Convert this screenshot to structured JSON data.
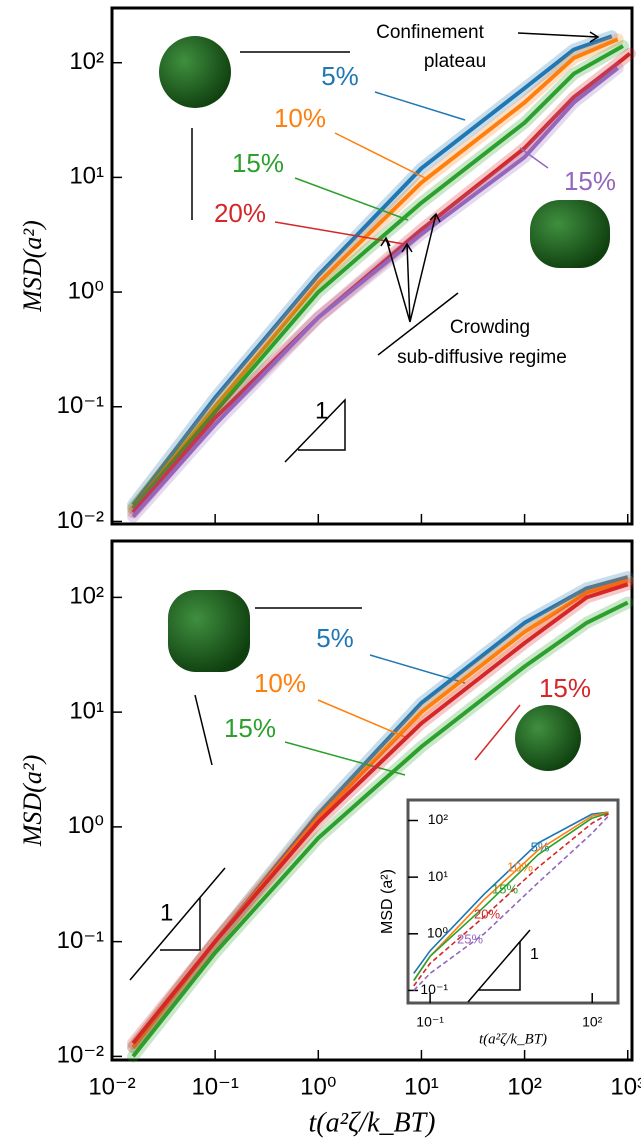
{
  "chart_data": [
    {
      "type": "line",
      "log_x": true,
      "log_y": true,
      "y_label": "MSD(a²)",
      "xlim": [
        0.01,
        1100
      ],
      "ylim": [
        0.0095,
        300
      ],
      "xticks": [
        0.01,
        0.1,
        1,
        10,
        100,
        1000
      ],
      "yticks": [
        {
          "value": 0.01,
          "label": "10⁻²"
        },
        {
          "value": 0.1,
          "label": "10⁻¹"
        },
        {
          "value": 1,
          "label": "10⁰"
        },
        {
          "value": 10,
          "label": "10¹"
        },
        {
          "value": 100,
          "label": "10²"
        }
      ],
      "annotations": [
        "Confinement",
        "plateau",
        "Crowding",
        "sub-diffusive regime",
        "1"
      ],
      "series": [
        {
          "name": "5%",
          "color": "#1f77b4",
          "x": [
            0.016,
            0.1,
            1,
            10,
            100,
            300,
            700
          ],
          "values": [
            0.014,
            0.12,
            1.4,
            12,
            60,
            130,
            170
          ]
        },
        {
          "name": "10%",
          "color": "#ff7f0e",
          "x": [
            0.016,
            0.1,
            1,
            10,
            100,
            300,
            800
          ],
          "values": [
            0.013,
            0.1,
            1.2,
            9,
            45,
            110,
            160
          ]
        },
        {
          "name": "15%",
          "color": "#2ca02c",
          "x": [
            0.016,
            0.1,
            1,
            10,
            100,
            300,
            900
          ],
          "values": [
            0.013,
            0.09,
            1.0,
            6,
            30,
            80,
            140
          ]
        },
        {
          "name": "20%",
          "color": "#d62728",
          "x": [
            0.016,
            0.1,
            1,
            10,
            100,
            300,
            700,
            1050
          ],
          "values": [
            0.012,
            0.08,
            0.6,
            3.5,
            18,
            50,
            90,
            120
          ]
        },
        {
          "name": "15%",
          "color": "#9467bd",
          "x": [
            0.016,
            0.1,
            1,
            10,
            100,
            300,
            800
          ],
          "values": [
            0.011,
            0.07,
            0.6,
            3.2,
            15,
            45,
            90
          ]
        }
      ]
    },
    {
      "type": "line",
      "log_x": true,
      "log_y": true,
      "y_label": "MSD(a²)",
      "x_label": "t(a²ζ/k_BT)",
      "xlim": [
        0.01,
        1100
      ],
      "ylim": [
        0.0093,
        310
      ],
      "xticks": [
        {
          "value": 0.01,
          "label": "10⁻²"
        },
        {
          "value": 0.1,
          "label": "10⁻¹"
        },
        {
          "value": 1,
          "label": "10⁰"
        },
        {
          "value": 10,
          "label": "10¹"
        },
        {
          "value": 100,
          "label": "10²"
        },
        {
          "value": 1000,
          "label": "10³"
        }
      ],
      "yticks": [
        {
          "value": 0.01,
          "label": "10⁻²"
        },
        {
          "value": 0.1,
          "label": "10⁻¹"
        },
        {
          "value": 1,
          "label": "10⁰"
        },
        {
          "value": 10,
          "label": "10¹"
        },
        {
          "value": 100,
          "label": "10²"
        }
      ],
      "annotations": [
        "1"
      ],
      "series": [
        {
          "name": "5%",
          "color": "#1f77b4",
          "x": [
            0.016,
            0.1,
            1,
            10,
            100,
            400,
            1000
          ],
          "values": [
            0.012,
            0.1,
            1.3,
            12,
            60,
            120,
            150
          ]
        },
        {
          "name": "10%",
          "color": "#ff7f0e",
          "x": [
            0.016,
            0.1,
            1,
            10,
            100,
            400,
            1000
          ],
          "values": [
            0.012,
            0.1,
            1.2,
            10,
            50,
            110,
            140
          ]
        },
        {
          "name": "15%",
          "color": "#2ca02c",
          "x": [
            0.016,
            0.1,
            1,
            10,
            100,
            400,
            1000
          ],
          "values": [
            0.01,
            0.08,
            0.8,
            5,
            25,
            60,
            90
          ]
        },
        {
          "name": "15%",
          "color": "#d62728",
          "x": [
            0.016,
            0.1,
            1,
            10,
            100,
            400,
            1000
          ],
          "values": [
            0.013,
            0.1,
            1.1,
            8,
            40,
            100,
            130
          ]
        }
      ]
    },
    {
      "type": "line",
      "log_x": true,
      "log_y": true,
      "y_label": "MSD (a²)",
      "x_label": "t(a²ζ/k_BT)",
      "xlim": [
        0.039,
        300
      ],
      "ylim": [
        0.06,
        230
      ],
      "xticks": [
        {
          "value": 0.1,
          "label": "10⁻¹"
        },
        {
          "value": 100,
          "label": "10²"
        }
      ],
      "yticks": [
        {
          "value": 0.1,
          "label": "10⁻¹"
        },
        {
          "value": 1,
          "label": "10⁰"
        },
        {
          "value": 10,
          "label": "10¹"
        },
        {
          "value": 100,
          "label": "10²"
        }
      ],
      "annotations": [
        "1"
      ],
      "series": [
        {
          "name": "5%",
          "color": "#1f77b4",
          "x": [
            0.05,
            0.1,
            1,
            10,
            100,
            200
          ],
          "values": [
            0.2,
            0.5,
            5,
            40,
            130,
            140
          ]
        },
        {
          "name": "10%",
          "color": "#ff7f0e",
          "x": [
            0.05,
            0.1,
            1,
            10,
            100,
            200
          ],
          "values": [
            0.15,
            0.4,
            4,
            30,
            120,
            140
          ]
        },
        {
          "name": "15%",
          "color": "#2ca02c",
          "x": [
            0.05,
            0.1,
            1,
            10,
            100,
            200
          ],
          "values": [
            0.15,
            0.4,
            3,
            25,
            110,
            135
          ]
        },
        {
          "name": "20%",
          "color": "#d62728",
          "linestyle": "dashed",
          "x": [
            0.05,
            0.1,
            1,
            10,
            100,
            200
          ],
          "values": [
            0.12,
            0.3,
            2,
            15,
            90,
            130
          ]
        },
        {
          "name": "25%",
          "color": "#9467bd",
          "linestyle": "dashed",
          "x": [
            0.05,
            0.1,
            1,
            10,
            100,
            200
          ],
          "values": [
            0.1,
            0.2,
            1,
            8,
            60,
            120
          ]
        }
      ]
    }
  ]
}
